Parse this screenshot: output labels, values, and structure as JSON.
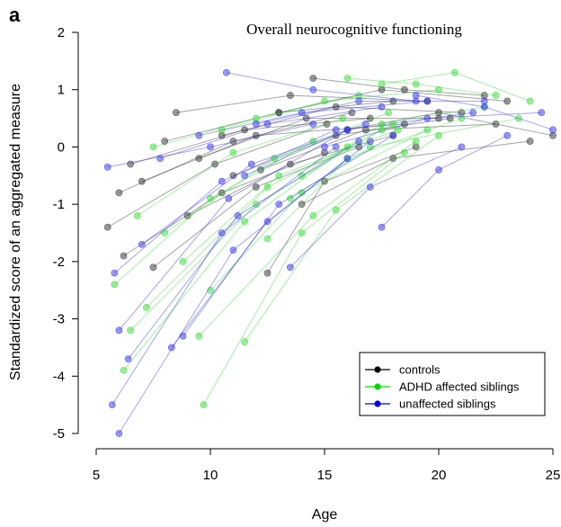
{
  "panel_label": "a",
  "chart_data": {
    "type": "line",
    "title": "Overall neurocognitive functioning",
    "xlabel": "Age",
    "ylabel": "Standardized score of an aggregated measure",
    "xlim": [
      5,
      25
    ],
    "ylim": [
      -5.1,
      2.1
    ],
    "xticks": [
      5,
      10,
      15,
      20,
      25
    ],
    "yticks": [
      -5,
      -4,
      -3,
      -2,
      -1,
      0,
      1,
      2
    ],
    "xtick_labels": [
      "5",
      "10",
      "15",
      "20",
      "25"
    ],
    "ytick_labels": [
      "-5",
      "-4",
      "-3",
      "-2",
      "-1",
      "0",
      "1",
      "2"
    ],
    "grid": false,
    "legend_position": "bottom-right",
    "series": [
      {
        "name": "controls",
        "color": "#333333",
        "trajectories": [
          [
            [
              5.5,
              -1.4
            ],
            [
              10.2,
              -0.3
            ],
            [
              15.1,
              0.4
            ]
          ],
          [
            [
              6.0,
              -0.8
            ],
            [
              11.0,
              0.1
            ],
            [
              16.2,
              0.6
            ]
          ],
          [
            [
              6.5,
              -0.3
            ],
            [
              11.5,
              0.3
            ],
            [
              17.0,
              0.5
            ]
          ],
          [
            [
              7.0,
              -0.6
            ],
            [
              12.0,
              0.2
            ],
            [
              18.5,
              0.4
            ]
          ],
          [
            [
              8.5,
              0.6
            ],
            [
              13.5,
              0.9
            ],
            [
              19.5,
              0.8
            ]
          ],
          [
            [
              9.5,
              -0.2
            ],
            [
              14.2,
              0.5
            ],
            [
              20.0,
              0.5
            ]
          ],
          [
            [
              10.5,
              0.2
            ],
            [
              15.5,
              0.7
            ],
            [
              21.0,
              0.6
            ]
          ],
          [
            [
              12.2,
              -0.4
            ],
            [
              16.8,
              0.3
            ],
            [
              22.5,
              0.4
            ]
          ],
          [
            [
              13.0,
              0.6
            ],
            [
              17.5,
              1.0
            ],
            [
              23.0,
              0.8
            ]
          ],
          [
            [
              14.0,
              -1.0
            ],
            [
              18.0,
              -0.2
            ],
            [
              24.0,
              0.1
            ]
          ],
          [
            [
              7.5,
              -2.1
            ],
            [
              12.0,
              -0.7
            ],
            [
              16.5,
              0.0
            ]
          ],
          [
            [
              9.0,
              -1.2
            ],
            [
              13.5,
              -0.3
            ],
            [
              18.0,
              0.2
            ]
          ],
          [
            [
              11.0,
              -0.5
            ],
            [
              15.5,
              0.2
            ],
            [
              20.5,
              0.5
            ]
          ],
          [
            [
              12.5,
              -2.2
            ],
            [
              15.0,
              -0.6
            ],
            [
              19.0,
              0.0
            ]
          ],
          [
            [
              16.0,
              0.3
            ],
            [
              20.0,
              0.6
            ],
            [
              25.0,
              0.2
            ]
          ],
          [
            [
              14.5,
              1.2
            ],
            [
              18.5,
              1.0
            ],
            [
              22.0,
              0.9
            ]
          ],
          [
            [
              8.0,
              0.1
            ],
            [
              13.0,
              0.6
            ],
            [
              18.0,
              0.8
            ]
          ],
          [
            [
              6.2,
              -1.9
            ],
            [
              10.5,
              -0.8
            ],
            [
              15.0,
              -0.1
            ]
          ]
        ]
      },
      {
        "name": "ADHD affected siblings",
        "color": "#33dd33",
        "trajectories": [
          [
            [
              5.8,
              -2.4
            ],
            [
              10.0,
              -0.9
            ],
            [
              14.5,
              0.1
            ]
          ],
          [
            [
              6.2,
              -3.9
            ],
            [
              11.5,
              -1.3
            ],
            [
              16.0,
              0.0
            ]
          ],
          [
            [
              6.5,
              -3.2
            ],
            [
              12.0,
              -1.0
            ],
            [
              17.5,
              0.3
            ]
          ],
          [
            [
              7.2,
              -2.8
            ],
            [
              12.5,
              -0.7
            ],
            [
              18.0,
              0.4
            ]
          ],
          [
            [
              9.7,
              -4.5
            ],
            [
              14.0,
              -1.5
            ],
            [
              18.5,
              -0.1
            ]
          ],
          [
            [
              9.5,
              -3.3
            ],
            [
              14.5,
              -1.2
            ],
            [
              19.0,
              0.1
            ]
          ],
          [
            [
              11.5,
              -3.4
            ],
            [
              15.5,
              -1.1
            ],
            [
              20.0,
              0.2
            ]
          ],
          [
            [
              10.0,
              -2.5
            ],
            [
              14.0,
              -0.8
            ],
            [
              19.5,
              0.3
            ]
          ],
          [
            [
              8.0,
              -1.5
            ],
            [
              12.8,
              -0.2
            ],
            [
              17.8,
              0.6
            ]
          ],
          [
            [
              12.5,
              -1.6
            ],
            [
              16.0,
              -0.2
            ],
            [
              21.0,
              0.5
            ]
          ],
          [
            [
              14.0,
              -0.5
            ],
            [
              17.5,
              0.4
            ],
            [
              22.0,
              0.7
            ]
          ],
          [
            [
              16.0,
              1.2
            ],
            [
              19.0,
              1.1
            ],
            [
              22.5,
              0.9
            ]
          ],
          [
            [
              17.5,
              1.1
            ],
            [
              20.7,
              1.3
            ],
            [
              24.0,
              0.8
            ]
          ],
          [
            [
              7.5,
              0.0
            ],
            [
              12.0,
              0.5
            ],
            [
              16.5,
              0.9
            ]
          ],
          [
            [
              10.5,
              0.3
            ],
            [
              15.0,
              0.8
            ],
            [
              20.0,
              1.0
            ]
          ],
          [
            [
              6.8,
              -1.2
            ],
            [
              11.0,
              -0.1
            ],
            [
              15.8,
              0.5
            ]
          ],
          [
            [
              13.5,
              -0.9
            ],
            [
              17.0,
              0.0
            ],
            [
              23.5,
              0.5
            ]
          ],
          [
            [
              8.8,
              -2.0
            ],
            [
              13.0,
              -0.5
            ],
            [
              18.2,
              0.3
            ]
          ]
        ]
      },
      {
        "name": "unaffected siblings",
        "color": "#3333ee",
        "trajectories": [
          [
            [
              6.0,
              -5.0
            ],
            [
              11.0,
              -1.8
            ],
            [
              16.0,
              -0.2
            ]
          ],
          [
            [
              5.7,
              -4.5
            ],
            [
              10.5,
              -1.5
            ],
            [
              15.5,
              0.0
            ]
          ],
          [
            [
              6.4,
              -3.7
            ],
            [
              11.2,
              -1.2
            ],
            [
              16.5,
              0.1
            ]
          ],
          [
            [
              6.0,
              -3.2
            ],
            [
              10.8,
              -0.9
            ],
            [
              16.0,
              0.3
            ]
          ],
          [
            [
              8.3,
              -3.5
            ],
            [
              12.5,
              -1.3
            ],
            [
              17.0,
              0.1
            ]
          ],
          [
            [
              8.8,
              -3.3
            ],
            [
              13.0,
              -1.0
            ],
            [
              18.0,
              0.2
            ]
          ],
          [
            [
              5.5,
              -0.35
            ],
            [
              10.0,
              0.0
            ],
            [
              14.5,
              0.4
            ]
          ],
          [
            [
              5.8,
              -2.2
            ],
            [
              10.5,
              -0.6
            ],
            [
              15.5,
              0.3
            ]
          ],
          [
            [
              7.0,
              -1.7
            ],
            [
              11.8,
              -0.3
            ],
            [
              16.8,
              0.4
            ]
          ],
          [
            [
              10.7,
              1.3
            ],
            [
              14.5,
              1.0
            ],
            [
              19.0,
              0.8
            ]
          ],
          [
            [
              13.5,
              -2.1
            ],
            [
              17.0,
              -0.7
            ],
            [
              21.0,
              0.0
            ]
          ],
          [
            [
              17.5,
              -1.4
            ],
            [
              20.0,
              -0.4
            ],
            [
              23.0,
              0.2
            ]
          ],
          [
            [
              9.5,
              0.2
            ],
            [
              14.0,
              0.6
            ],
            [
              19.5,
              0.8
            ]
          ],
          [
            [
              11.5,
              -0.5
            ],
            [
              16.0,
              0.3
            ],
            [
              21.5,
              0.6
            ]
          ],
          [
            [
              15.0,
              0.0
            ],
            [
              19.5,
              0.5
            ],
            [
              24.5,
              0.6
            ]
          ],
          [
            [
              7.8,
              -0.2
            ],
            [
              12.5,
              0.4
            ],
            [
              17.5,
              0.7
            ]
          ],
          [
            [
              12.0,
              0.4
            ],
            [
              16.5,
              0.8
            ],
            [
              22.0,
              0.8
            ]
          ],
          [
            [
              19.0,
              0.9
            ],
            [
              22.0,
              0.7
            ],
            [
              25.0,
              0.3
            ]
          ]
        ]
      }
    ]
  }
}
